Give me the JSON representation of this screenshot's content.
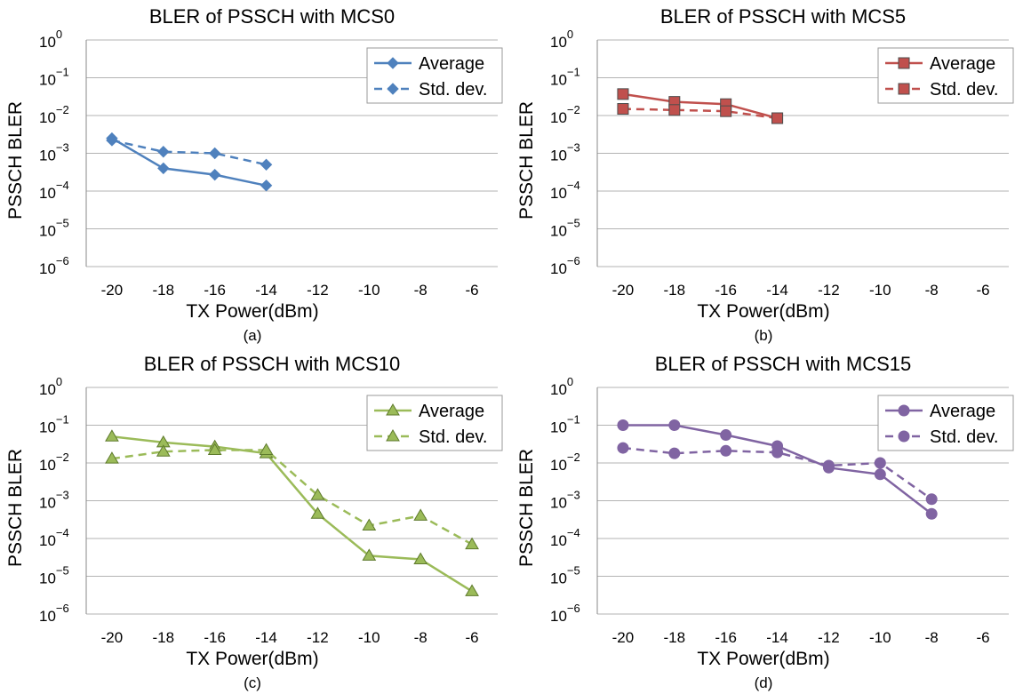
{
  "chart_data": [
    {
      "type": "line",
      "title": "BLER of PSSCH with MCS0",
      "xlabel": "TX Power(dBm)",
      "ylabel": "PSSCH BLER",
      "caption": "(a)",
      "yscale": "log",
      "ylim": [
        1e-06,
        1
      ],
      "x_ticks": [
        "-20",
        "-18",
        "-16",
        "-14",
        "-12",
        "-10",
        "-8",
        "-6"
      ],
      "y_ticks": [
        {
          "base": "10",
          "exp": "0"
        },
        {
          "base": "10",
          "exp": "−1"
        },
        {
          "base": "10",
          "exp": "−2"
        },
        {
          "base": "10",
          "exp": "−3"
        },
        {
          "base": "10",
          "exp": "−4"
        },
        {
          "base": "10",
          "exp": "−5"
        },
        {
          "base": "10",
          "exp": "−6"
        }
      ],
      "legend_position": "top-right",
      "color": "#4f81bd",
      "marker": "diamond",
      "series": [
        {
          "name": "Average",
          "dash": false,
          "x": [
            -20,
            -18,
            -16,
            -14
          ],
          "values": [
            0.0025,
            0.0004,
            0.00027,
            0.00014
          ]
        },
        {
          "name": "Std. dev.",
          "dash": true,
          "x": [
            -20,
            -18,
            -16,
            -14
          ],
          "values": [
            0.0022,
            0.0011,
            0.001,
            0.0005
          ]
        }
      ]
    },
    {
      "type": "line",
      "title": "BLER of PSSCH with MCS5",
      "xlabel": "TX Power(dBm)",
      "ylabel": "PSSCH BLER",
      "caption": "(b)",
      "yscale": "log",
      "ylim": [
        1e-06,
        1
      ],
      "x_ticks": [
        "-20",
        "-18",
        "-16",
        "-14",
        "-12",
        "-10",
        "-8",
        "-6"
      ],
      "y_ticks": [
        {
          "base": "10",
          "exp": "0"
        },
        {
          "base": "10",
          "exp": "−1"
        },
        {
          "base": "10",
          "exp": "−2"
        },
        {
          "base": "10",
          "exp": "−3"
        },
        {
          "base": "10",
          "exp": "−4"
        },
        {
          "base": "10",
          "exp": "−5"
        },
        {
          "base": "10",
          "exp": "−6"
        }
      ],
      "legend_position": "top-right",
      "color": "#c0504d",
      "marker": "square",
      "series": [
        {
          "name": "Average",
          "dash": false,
          "x": [
            -20,
            -18,
            -16,
            -14
          ],
          "values": [
            0.037,
            0.023,
            0.02,
            0.0085
          ]
        },
        {
          "name": "Std. dev.",
          "dash": true,
          "x": [
            -20,
            -18,
            -16,
            -14
          ],
          "values": [
            0.015,
            0.014,
            0.013,
            0.0085
          ]
        }
      ]
    },
    {
      "type": "line",
      "title": "BLER of PSSCH with MCS10",
      "xlabel": "TX Power(dBm)",
      "ylabel": "PSSCH BLER",
      "caption": "(c)",
      "yscale": "log",
      "ylim": [
        1e-06,
        1
      ],
      "x_ticks": [
        "-20",
        "-18",
        "-16",
        "-14",
        "-12",
        "-10",
        "-8",
        "-6"
      ],
      "y_ticks": [
        {
          "base": "10",
          "exp": "0"
        },
        {
          "base": "10",
          "exp": "−1"
        },
        {
          "base": "10",
          "exp": "−2"
        },
        {
          "base": "10",
          "exp": "−3"
        },
        {
          "base": "10",
          "exp": "−4"
        },
        {
          "base": "10",
          "exp": "−5"
        },
        {
          "base": "10",
          "exp": "−6"
        }
      ],
      "legend_position": "top-right",
      "color": "#9bbb59",
      "marker": "triangle",
      "series": [
        {
          "name": "Average",
          "dash": false,
          "x": [
            -20,
            -18,
            -16,
            -14,
            -12,
            -10,
            -8,
            -6
          ],
          "values": [
            0.05,
            0.035,
            0.027,
            0.018,
            0.00045,
            3.5e-05,
            2.8e-05,
            4e-06
          ]
        },
        {
          "name": "Std. dev.",
          "dash": true,
          "x": [
            -20,
            -18,
            -16,
            -14,
            -12,
            -10,
            -8,
            -6
          ],
          "values": [
            0.013,
            0.02,
            0.022,
            0.022,
            0.0014,
            0.00022,
            0.0004,
            7e-05
          ]
        }
      ]
    },
    {
      "type": "line",
      "title": "BLER of PSSCH with MCS15",
      "xlabel": "TX Power(dBm)",
      "ylabel": "PSSCH BLER",
      "caption": "(d)",
      "yscale": "log",
      "ylim": [
        1e-06,
        1
      ],
      "x_ticks": [
        "-20",
        "-18",
        "-16",
        "-14",
        "-12",
        "-10",
        "-8",
        "-6"
      ],
      "y_ticks": [
        {
          "base": "10",
          "exp": "0"
        },
        {
          "base": "10",
          "exp": "−1"
        },
        {
          "base": "10",
          "exp": "−2"
        },
        {
          "base": "10",
          "exp": "−3"
        },
        {
          "base": "10",
          "exp": "−4"
        },
        {
          "base": "10",
          "exp": "−5"
        },
        {
          "base": "10",
          "exp": "−6"
        }
      ],
      "legend_position": "top-right",
      "color": "#8064a2",
      "marker": "circle",
      "series": [
        {
          "name": "Average",
          "dash": false,
          "x": [
            -20,
            -18,
            -16,
            -14,
            -12,
            -10,
            -8
          ],
          "values": [
            0.1,
            0.1,
            0.055,
            0.028,
            0.0075,
            0.005,
            0.00045
          ]
        },
        {
          "name": "Std. dev.",
          "dash": true,
          "x": [
            -20,
            -18,
            -16,
            -14,
            -12,
            -10,
            -8
          ],
          "values": [
            0.025,
            0.018,
            0.021,
            0.019,
            0.0085,
            0.01,
            0.0011
          ]
        }
      ]
    }
  ]
}
